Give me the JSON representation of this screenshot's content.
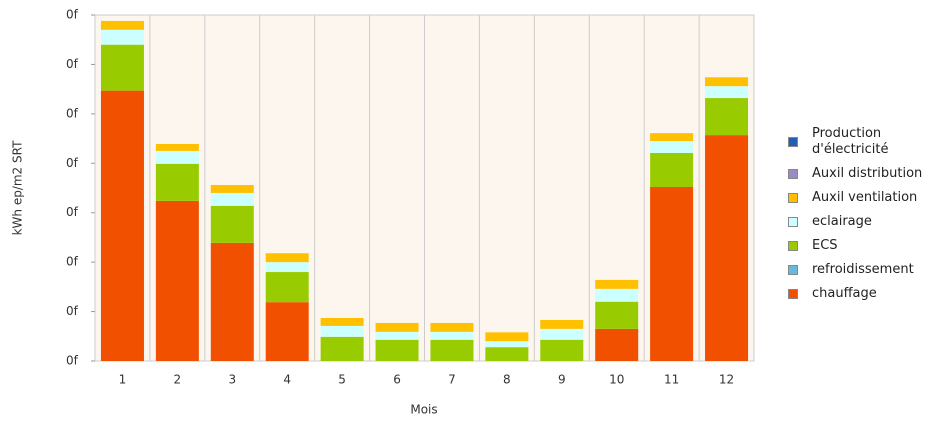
{
  "chart_data": {
    "type": "stacked-bar",
    "y_label": "kWh ep/m2 SRT",
    "x_label": "Mois",
    "categories": [
      "1",
      "2",
      "3",
      "4",
      "5",
      "6",
      "7",
      "8",
      "9",
      "10",
      "11",
      "12"
    ],
    "ylim": [
      0,
      7
    ],
    "yticks": [
      {
        "value": 0,
        "label": "0f"
      },
      {
        "value": 1,
        "label": "0f"
      },
      {
        "value": 2,
        "label": "0f"
      },
      {
        "value": 3,
        "label": "0f"
      },
      {
        "value": 4,
        "label": "0f"
      },
      {
        "value": 5,
        "label": "0f"
      },
      {
        "value": 6,
        "label": "0f"
      },
      {
        "value": 7,
        "label": "0f"
      }
    ],
    "series": [
      {
        "name": "chauffage",
        "color": "#f05000",
        "values": [
          5.47,
          3.24,
          2.39,
          1.19,
          0,
          0,
          0,
          0,
          0,
          0.65,
          3.52,
          4.57
        ]
      },
      {
        "name": "refroidissement",
        "color": "#66bbdd",
        "values": [
          0,
          0,
          0,
          0,
          0,
          0,
          0,
          0,
          0,
          0,
          0,
          0
        ]
      },
      {
        "name": "ECS",
        "color": "#99cc00",
        "values": [
          0.93,
          0.75,
          0.75,
          0.61,
          0.49,
          0.43,
          0.43,
          0.28,
          0.43,
          0.55,
          0.69,
          0.75
        ]
      },
      {
        "name": "eclairage",
        "color": "#ccffff",
        "values": [
          0.3,
          0.26,
          0.26,
          0.2,
          0.22,
          0.16,
          0.16,
          0.12,
          0.22,
          0.26,
          0.24,
          0.24
        ]
      },
      {
        "name": "Auxil ventilation",
        "color": "#ffc000",
        "values": [
          0.18,
          0.14,
          0.16,
          0.18,
          0.16,
          0.18,
          0.18,
          0.18,
          0.18,
          0.18,
          0.16,
          0.18
        ]
      },
      {
        "name": "Auxil distribution",
        "color": "#9c8ac6",
        "values": [
          0,
          0,
          0,
          0,
          0,
          0,
          0,
          0,
          0,
          0,
          0,
          0
        ]
      },
      {
        "name": "Production d'électricité",
        "color": "#1f5fb4",
        "values": [
          0,
          0,
          0,
          0,
          0,
          0,
          0,
          0,
          0,
          0,
          0,
          0
        ]
      }
    ]
  }
}
